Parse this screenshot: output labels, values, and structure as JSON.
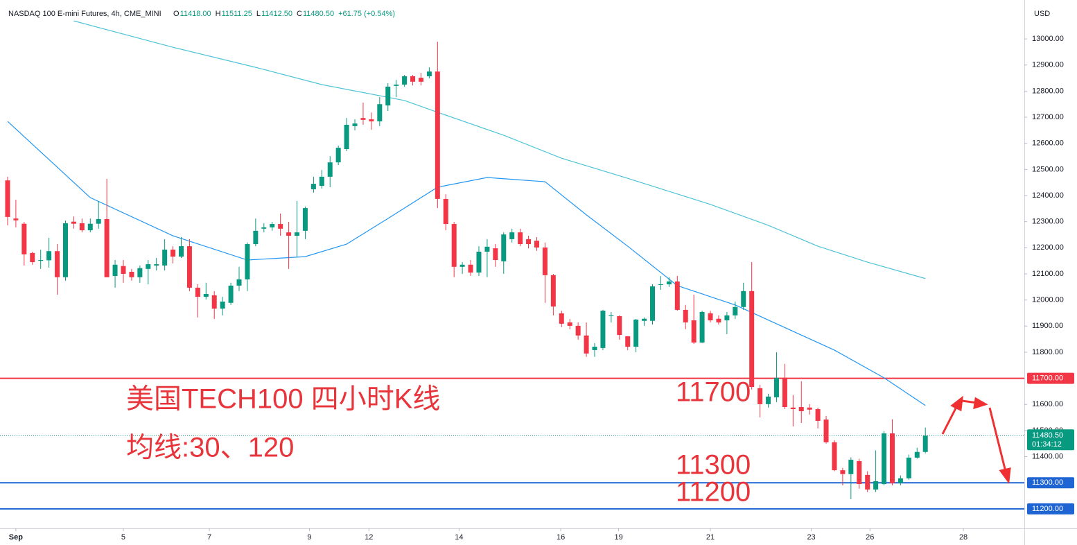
{
  "header": {
    "title": "NASDAQ 100 E-mini Futures, 4h, CME_MINI",
    "ohlc": [
      {
        "k": "O",
        "v": "11418.00"
      },
      {
        "k": "H",
        "v": "11511.25"
      },
      {
        "k": "L",
        "v": "11412.50"
      },
      {
        "k": "C",
        "v": "11480.50"
      }
    ],
    "change": "+61.75 (+0.54%)",
    "currency": "USD"
  },
  "chart_data": {
    "type": "candlestick",
    "up_color": "#089981",
    "down_color": "#f23645",
    "xlim": [
      -0.92,
      122.97
    ],
    "ylim": [
      11104,
      13149
    ],
    "xticks": [
      {
        "value": 1,
        "label": "Sep"
      },
      {
        "value": 14,
        "label": "5"
      },
      {
        "value": 24.4,
        "label": "7"
      },
      {
        "value": 36.5,
        "label": "9"
      },
      {
        "value": 43.7,
        "label": "12"
      },
      {
        "value": 54.6,
        "label": "14"
      },
      {
        "value": 66.9,
        "label": "16"
      },
      {
        "value": 73.9,
        "label": "19"
      },
      {
        "value": 85,
        "label": "21"
      },
      {
        "value": 97.2,
        "label": "23"
      },
      {
        "value": 104.3,
        "label": "26"
      },
      {
        "value": 115.6,
        "label": "28"
      }
    ],
    "yticks": [
      {
        "value": 11400,
        "label": "11400.00"
      },
      {
        "value": 11500,
        "label": "11500.00"
      },
      {
        "value": 11600,
        "label": "11600.00"
      },
      {
        "value": 11800,
        "label": "11800.00"
      },
      {
        "value": 11900,
        "label": "11900.00"
      },
      {
        "value": 12000,
        "label": "12000.00"
      },
      {
        "value": 12100,
        "label": "12100.00"
      },
      {
        "value": 12200,
        "label": "12200.00"
      },
      {
        "value": 12300,
        "label": "12300.00"
      },
      {
        "value": 12400,
        "label": "12400.00"
      },
      {
        "value": 12500,
        "label": "12500.00"
      },
      {
        "value": 12600,
        "label": "12600.00"
      },
      {
        "value": 12700,
        "label": "12700.00"
      },
      {
        "value": 12800,
        "label": "12800.00"
      },
      {
        "value": 12900,
        "label": "12900.00"
      },
      {
        "value": 13000,
        "label": "13000.00"
      }
    ],
    "open": [
      12458,
      12312,
      12292,
      12180,
      12150,
      12152,
      12187,
      12087,
      12300,
      12294,
      12267,
      12292,
      12310,
      12092,
      12130,
      12108,
      12087,
      12119,
      12132,
      12132,
      12193,
      12166,
      12206,
      12047,
      12012,
      12018,
      11967,
      11989,
      12055,
      12079,
      12214,
      12273,
      12278,
      12291,
      12259,
      12246,
      12265,
      12424,
      12437,
      12472,
      12527,
      12578,
      12666,
      12697,
      12692,
      12684,
      12745,
      12820,
      12825,
      12857,
      12851,
      12857,
      12875,
      12387,
      12291,
      12127,
      12135,
      12105,
      12185,
      12198,
      12148,
      12233,
      12259,
      12233,
      12227,
      12201,
      12095,
      11949,
      11914,
      11901,
      11864,
      11808,
      11816,
      11938,
      11938,
      11861,
      11821,
      11920,
      11920,
      12058,
      12060,
      12071,
      11962,
      11922,
      11837,
      11949,
      11928,
      11922,
      11941,
      11973,
      12034,
      11662,
      11601,
      11627,
      11702,
      11588,
      11590,
      11588,
      11582,
      11542,
      11455,
      11348,
      11333,
      11383,
      11330,
      11274,
      11295,
      11489,
      11298,
      11317,
      11396,
      11418
    ],
    "high": [
      12472,
      12384,
      12299,
      12185,
      12193,
      12238,
      12214,
      12304,
      12320,
      12312,
      12312,
      12379,
      12464,
      12153,
      12153,
      12119,
      12132,
      12153,
      12161,
      12233,
      12206,
      12241,
      12233,
      12060,
      12066,
      12034,
      12012,
      12066,
      12127,
      12220,
      12312,
      12294,
      12299,
      12331,
      12299,
      12379,
      12358,
      12472,
      12498,
      12551,
      12591,
      12697,
      12692,
      12756,
      12718,
      12777,
      12830,
      12843,
      12862,
      12862,
      12870,
      12891,
      12989,
      12405,
      12299,
      12145,
      12153,
      12206,
      12233,
      12214,
      12259,
      12273,
      12273,
      12246,
      12241,
      12220,
      12100,
      11959,
      11927,
      11914,
      11914,
      11835,
      11962,
      11954,
      11941,
      11861,
      11927,
      11933,
      12060,
      12092,
      12087,
      12092,
      11981,
      12020,
      11959,
      11959,
      11941,
      11954,
      11994,
      12066,
      12145,
      11675,
      11641,
      11800,
      11755,
      11636,
      11689,
      11601,
      11588,
      11556,
      11463,
      11357,
      11397,
      11392,
      11344,
      11424,
      11498,
      11543,
      11328,
      11408,
      11434,
      11511.25
    ],
    "low": [
      12286,
      12278,
      12132,
      12135,
      12119,
      12124,
      12020,
      12074,
      12273,
      12259,
      12259,
      12273,
      12087,
      12047,
      12066,
      12074,
      12066,
      12060,
      12113,
      12113,
      12140,
      12161,
      12034,
      11933,
      12002,
      11927,
      11941,
      11981,
      12034,
      12034,
      12206,
      12259,
      12265,
      12246,
      12119,
      12166,
      12233,
      12411,
      12427,
      12432,
      12517,
      12570,
      12650,
      12671,
      12652,
      12666,
      12724,
      12777,
      12817,
      12822,
      12822,
      12849,
      12352,
      12267,
      12087,
      12100,
      12092,
      12092,
      12087,
      12127,
      12100,
      12220,
      12206,
      12198,
      12188,
      11989,
      11941,
      11896,
      11888,
      11848,
      11782,
      11782,
      11808,
      11914,
      11848,
      11808,
      11800,
      11901,
      11906,
      12039,
      12050,
      11959,
      11888,
      11832,
      11835,
      11914,
      11906,
      11869,
      11927,
      11962,
      11657,
      11550,
      11588,
      11609,
      11582,
      11516,
      11529,
      11561,
      11508,
      11450,
      11344,
      11290,
      11237,
      11277,
      11264,
      11264,
      11290,
      11290,
      11290,
      11312,
      11392,
      11412.5
    ],
    "close": [
      12318,
      12305,
      12175,
      12145,
      12153,
      12187,
      12087,
      12294,
      12292,
      12267,
      12292,
      12310,
      12087,
      12135,
      12100,
      12087,
      12122,
      12137,
      12137,
      12193,
      12166,
      12206,
      12047,
      12012,
      12023,
      11967,
      11994,
      12055,
      12079,
      12214,
      12265,
      12278,
      12291,
      12273,
      12246,
      12259,
      12352,
      12445,
      12472,
      12527,
      12583,
      12671,
      12676,
      12690,
      12684,
      12750,
      12817,
      12825,
      12857,
      12836,
      12836,
      12875,
      12387,
      12291,
      12127,
      12135,
      12105,
      12185,
      12204,
      12153,
      12251,
      12259,
      12214,
      12214,
      12201,
      12095,
      11975,
      11909,
      11901,
      11864,
      11795,
      11821,
      11959,
      11941,
      11866,
      11821,
      11925,
      11928,
      12052,
      12060,
      12071,
      11962,
      11914,
      11837,
      11954,
      11922,
      11914,
      11941,
      11973,
      12034,
      11667,
      11601,
      11630,
      11702,
      11590,
      11582,
      11574,
      11580,
      11537,
      11455,
      11348,
      11333,
      11388,
      11295,
      11274,
      11306,
      11489,
      11298,
      11317,
      11396,
      11418,
      11480.5
    ],
    "moving_averages": [
      {
        "color": "#2196f3",
        "x": [
          0,
          10,
          20,
          29,
          36,
          41,
          46,
          52,
          58,
          65,
          70,
          75,
          81,
          88,
          95,
          100,
          106,
          111
        ],
        "values": [
          12684,
          12392,
          12246,
          12153,
          12166,
          12214,
          12312,
          12432,
          12469,
          12453,
          12326,
          12206,
          12055,
          11981,
          11880,
          11808,
          11702,
          11596
        ]
      },
      {
        "color": "#4dc3d8",
        "x": [
          8,
          20,
          30,
          38,
          48,
          52,
          60,
          67,
          75,
          85,
          92,
          98,
          104,
          111
        ],
        "values": [
          13069,
          12968,
          12891,
          12825,
          12764,
          12719,
          12631,
          12543,
          12466,
          12366,
          12286,
          12206,
          12145,
          12082
        ]
      }
    ],
    "hlines": [
      {
        "value": 11700,
        "label": "11700.00",
        "color": "#f23645"
      },
      {
        "value": 11300,
        "label": "11300.00",
        "color": "#1e64d2"
      },
      {
        "value": 11200,
        "label": "11200.00",
        "color": "#1e64d2"
      }
    ],
    "last_price": {
      "value": 11480.5,
      "label": "11480.50",
      "countdown": "01:34:12",
      "color": "#089981"
    },
    "annotations": {
      "title": "美国TECH100 四小时K线",
      "ma_note": "均线:30、120",
      "level_11700": "11700",
      "level_11300": "11300",
      "level_11200": "11200"
    }
  }
}
